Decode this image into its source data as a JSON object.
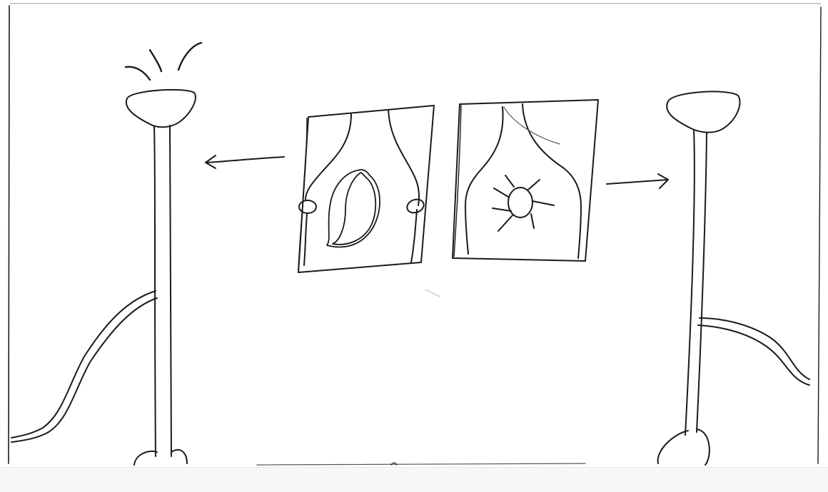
{
  "image": {
    "kind": "hand-drawn pencil sketch",
    "ink_color": "#1a1a1a",
    "paper_color": "#ffffff"
  },
  "sketch": {
    "left_lamp": {
      "lit": true
    },
    "right_lamp": {
      "lit": false
    },
    "panels": [
      {
        "symbol": "moon-icon",
        "arrow": "left"
      },
      {
        "symbol": "sun-icon",
        "arrow": "right"
      }
    ]
  }
}
